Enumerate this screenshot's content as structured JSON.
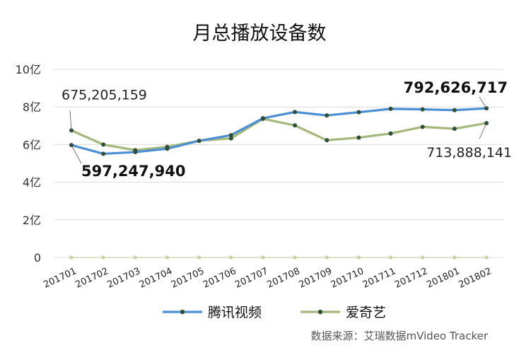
{
  "chart_data": {
    "type": "line",
    "title": "月总播放设备数",
    "categories": [
      "201701",
      "201702",
      "201703",
      "201704",
      "201705",
      "201706",
      "201707",
      "201708",
      "201709",
      "201710",
      "201711",
      "201712",
      "201801",
      "201802"
    ],
    "y_tick_labels": [
      "0",
      "2亿",
      "4亿",
      "6亿",
      "8亿",
      "10亿"
    ],
    "ylim": [
      0,
      1000000000
    ],
    "grid": true,
    "legend_position": "bottom",
    "series": [
      {
        "name": "腾讯视频",
        "color": "#4a8fd4",
        "values": [
          597247940,
          551000000,
          560000000,
          578000000,
          620000000,
          650000000,
          740000000,
          773000000,
          755000000,
          772000000,
          790000000,
          787000000,
          783000000,
          792626717
        ]
      },
      {
        "name": "爱奇艺",
        "color": "#a3b87a",
        "values": [
          675205159,
          600000000,
          570000000,
          588000000,
          620000000,
          633000000,
          737000000,
          702000000,
          623000000,
          637000000,
          659000000,
          694000000,
          684000000,
          713888141
        ]
      }
    ],
    "zero_series_color": "#c5d3a6",
    "annotations": [
      {
        "text": "675,205,159",
        "series": 1,
        "index": 0
      },
      {
        "text": "597,247,940",
        "series": 0,
        "index": 0
      },
      {
        "text": "792,626,717",
        "series": 0,
        "index": 13
      },
      {
        "text": "713,888,141",
        "series": 1,
        "index": 13
      }
    ],
    "source": "数据来源：艾瑞数据mVideo Tracker"
  }
}
